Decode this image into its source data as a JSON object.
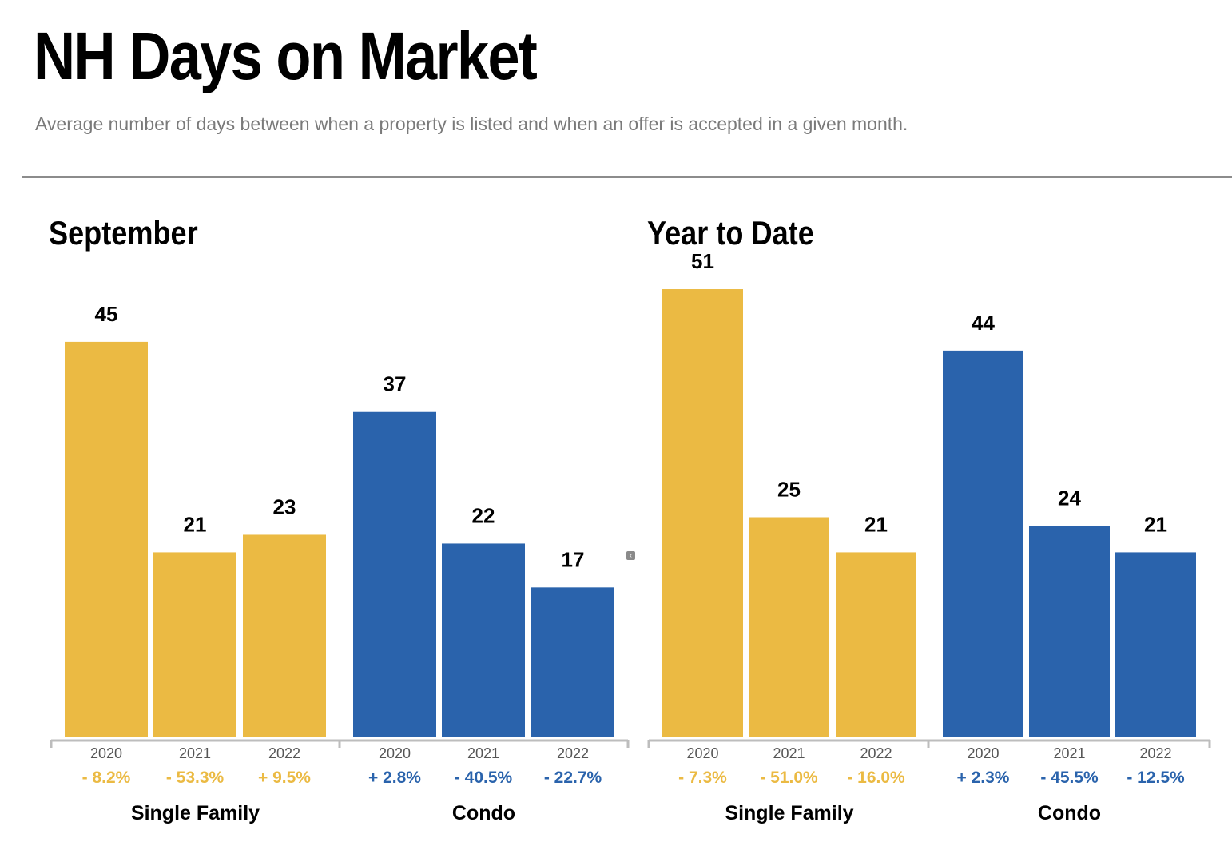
{
  "header": {
    "title": "NH Days on Market",
    "subtitle": "Average number of days between when a property is listed and when an offer is accepted in a given month."
  },
  "colors": {
    "single_family": "#EBBA43",
    "condo": "#2A63AC",
    "axis": "#bdbdbd",
    "year_label": "#555555"
  },
  "chart_data": [
    {
      "type": "bar",
      "title": "September",
      "categories": [
        "2020",
        "2021",
        "2022"
      ],
      "series": [
        {
          "name": "Single Family",
          "values": [
            45,
            21,
            23
          ],
          "changes": [
            "- 8.2%",
            "- 53.3%",
            "+ 9.5%"
          ]
        },
        {
          "name": "Condo",
          "values": [
            37,
            22,
            17
          ],
          "changes": [
            "+ 2.8%",
            "- 40.5%",
            "- 22.7%"
          ]
        }
      ],
      "ylim": [
        0,
        45
      ]
    },
    {
      "type": "bar",
      "title": "Year to Date",
      "categories": [
        "2020",
        "2021",
        "2022"
      ],
      "series": [
        {
          "name": "Single Family",
          "values": [
            51,
            25,
            21
          ],
          "changes": [
            "- 7.3%",
            "- 51.0%",
            "- 16.0%"
          ]
        },
        {
          "name": "Condo",
          "values": [
            44,
            24,
            21
          ],
          "changes": [
            "+ 2.3%",
            "- 45.5%",
            "- 12.5%"
          ]
        }
      ],
      "ylim": [
        0,
        51
      ]
    }
  ]
}
